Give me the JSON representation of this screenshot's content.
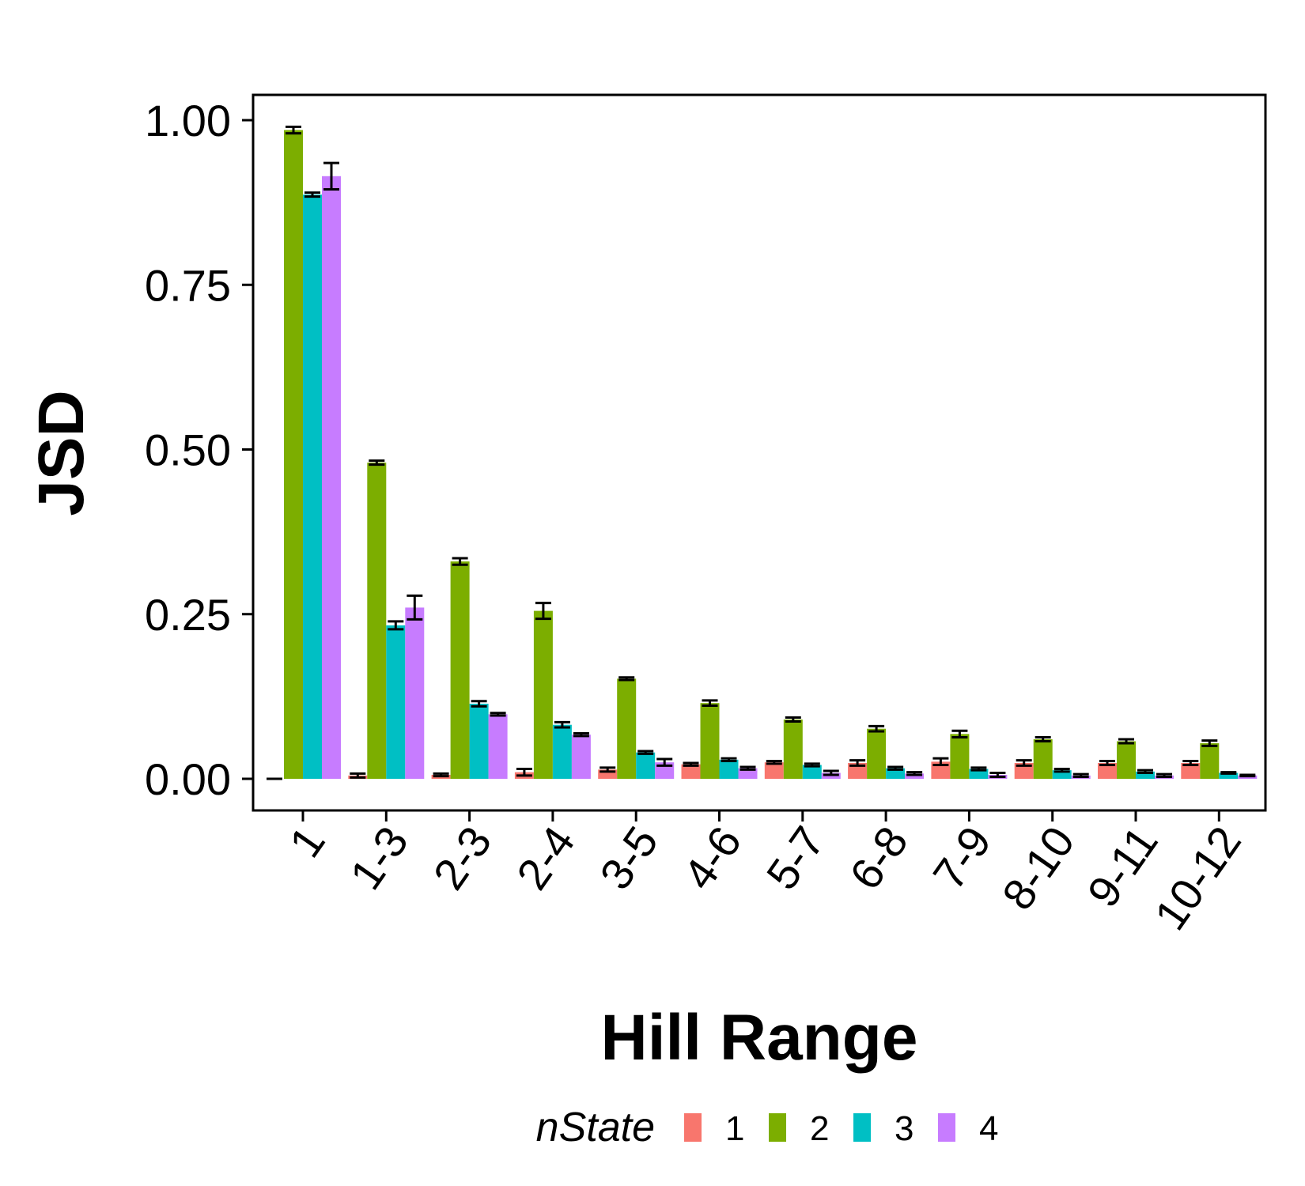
{
  "chart_data": {
    "type": "bar",
    "title": "",
    "xlabel": "Hill Range",
    "ylabel": "JSD",
    "ylim": [
      -0.05,
      1.04
    ],
    "yticks": [
      "0.00",
      "0.25",
      "0.50",
      "0.75",
      "1.00"
    ],
    "ytick_values": [
      0,
      0.25,
      0.5,
      0.75,
      1.0
    ],
    "grid": false,
    "legend": {
      "title": "nState",
      "placement": "bottom",
      "labels": [
        "1",
        "2",
        "3",
        "4"
      ]
    },
    "categories": [
      "1",
      "1-3",
      "2-3",
      "2-4",
      "3-5",
      "4-6",
      "5-7",
      "6-8",
      "7-9",
      "8-10",
      "9-11",
      "10-12"
    ],
    "series": [
      {
        "name": "1",
        "color": "#F8766D",
        "values": [
          0.0,
          0.005,
          0.006,
          0.01,
          0.014,
          0.022,
          0.025,
          0.024,
          0.026,
          0.024,
          0.024,
          0.024
        ],
        "errors": [
          0.0,
          0.003,
          0.002,
          0.005,
          0.003,
          0.002,
          0.002,
          0.004,
          0.005,
          0.004,
          0.003,
          0.003
        ]
      },
      {
        "name": "2",
        "color": "#7CAE00",
        "values": [
          0.985,
          0.48,
          0.33,
          0.255,
          0.152,
          0.115,
          0.09,
          0.076,
          0.068,
          0.06,
          0.057,
          0.054
        ],
        "errors": [
          0.005,
          0.003,
          0.005,
          0.012,
          0.002,
          0.004,
          0.003,
          0.004,
          0.005,
          0.003,
          0.003,
          0.004
        ]
      },
      {
        "name": "3",
        "color": "#00BFC4",
        "values": [
          0.887,
          0.233,
          0.114,
          0.082,
          0.04,
          0.029,
          0.021,
          0.016,
          0.015,
          0.013,
          0.011,
          0.009
        ],
        "errors": [
          0.003,
          0.006,
          0.004,
          0.004,
          0.002,
          0.002,
          0.002,
          0.002,
          0.002,
          0.002,
          0.002,
          0.001
        ]
      },
      {
        "name": "4",
        "color": "#C77CFF",
        "values": [
          0.915,
          0.26,
          0.098,
          0.067,
          0.025,
          0.016,
          0.009,
          0.008,
          0.006,
          0.005,
          0.005,
          0.005
        ],
        "errors": [
          0.02,
          0.018,
          0.002,
          0.002,
          0.005,
          0.002,
          0.003,
          0.002,
          0.003,
          0.002,
          0.002,
          0.001
        ]
      }
    ]
  }
}
